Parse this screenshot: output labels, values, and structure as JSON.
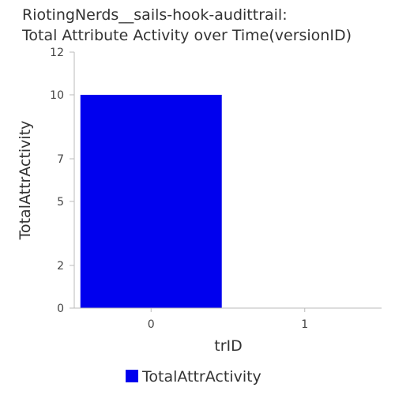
{
  "chart_data": {
    "type": "bar",
    "title_lines": [
      "RiotingNerds__sails-hook-audittrail:",
      "Total Attribute Activity over Time(versionID)"
    ],
    "xlabel": "trID",
    "ylabel": "TotalAttrActivity",
    "categories": [
      "0",
      "1"
    ],
    "series": [
      {
        "name": "TotalAttrActivity",
        "values": [
          10,
          0
        ],
        "color": "#0000ee"
      }
    ],
    "ylim": [
      0,
      12
    ],
    "yticks": [
      0,
      2,
      5,
      7,
      10,
      12
    ],
    "grid": false,
    "legend_position": "bottom"
  }
}
